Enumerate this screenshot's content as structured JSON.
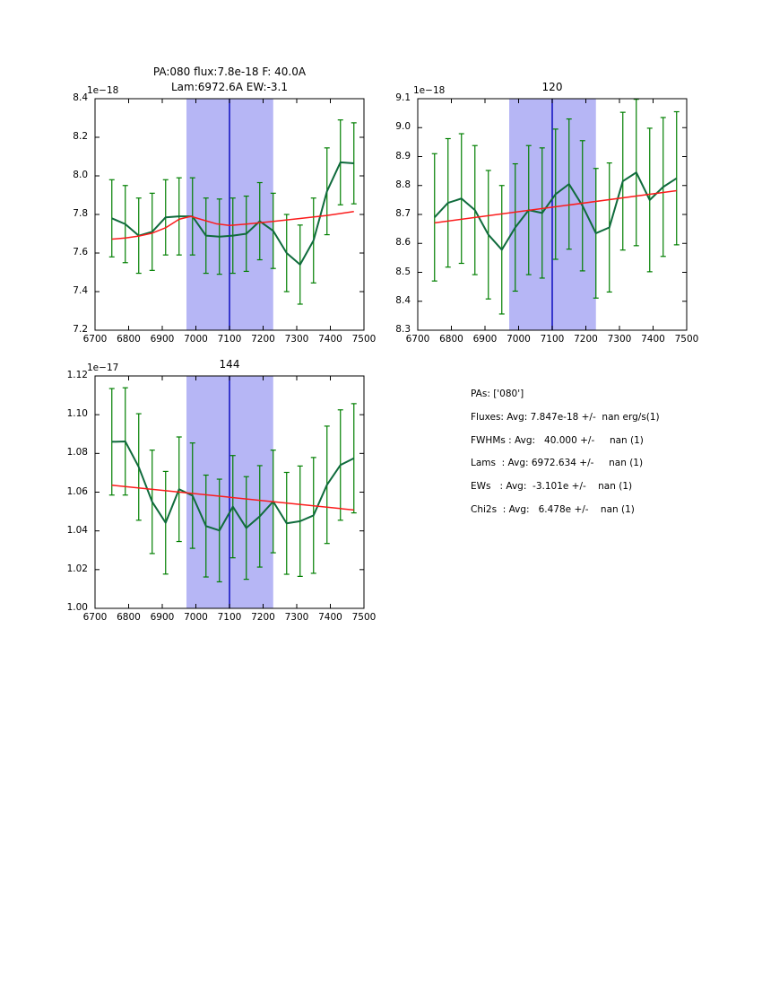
{
  "figure": {
    "background": "#ffffff"
  },
  "palette": {
    "band": "#b6b6f5",
    "vline": "#0d0dc0",
    "error_bar": "#007f00",
    "data_line": "#0f6b3c",
    "fit_line": "#fb1b1b",
    "frame": "#000000"
  },
  "chart_data": [
    {
      "type": "line",
      "title": "PA:080 flux:7.8e-18 F: 40.0A  Lam:6972.6A EW:-3.1",
      "title_lines": [
        "PA:080 flux:7.8e-18 F: 40.0A",
        "Lam:6972.6A EW:-3.1"
      ],
      "offset_label": "1e−18",
      "xlabel": "",
      "ylabel": "",
      "xlim": [
        6700,
        7500
      ],
      "ylim": [
        7.2,
        8.4
      ],
      "xticks": [
        6700,
        6800,
        6900,
        7000,
        7100,
        7200,
        7300,
        7400,
        7500
      ],
      "xtick_labels": [
        "6700",
        "6800",
        "6900",
        "7000",
        "7100",
        "7200",
        "7300",
        "7400",
        "7500"
      ],
      "yticks": [
        7.2,
        7.4,
        7.6,
        7.8,
        8.0,
        8.2,
        8.4
      ],
      "ytick_labels": [
        "7.2",
        "7.4",
        "7.6",
        "7.8",
        "8.0",
        "8.2",
        "8.4"
      ],
      "band": {
        "x0": 6972,
        "x1": 7230
      },
      "vline_x": 7100,
      "x": [
        6750,
        6790,
        6830,
        6870,
        6910,
        6950,
        6990,
        7030,
        7070,
        7110,
        7150,
        7190,
        7230,
        7270,
        7310,
        7350,
        7390,
        7430,
        7470
      ],
      "y": [
        7.78,
        7.75,
        7.69,
        7.71,
        7.785,
        7.79,
        7.79,
        7.69,
        7.685,
        7.69,
        7.7,
        7.765,
        7.715,
        7.6,
        7.54,
        7.665,
        7.92,
        8.07,
        8.065
      ],
      "yerr": [
        0.2,
        0.2,
        0.195,
        0.2,
        0.195,
        0.2,
        0.2,
        0.195,
        0.195,
        0.195,
        0.195,
        0.2,
        0.195,
        0.2,
        0.205,
        0.22,
        0.225,
        0.22,
        0.21
      ],
      "fit_line": [
        [
          6750,
          7.672
        ],
        [
          6790,
          7.678
        ],
        [
          6830,
          7.688
        ],
        [
          6870,
          7.703
        ],
        [
          6910,
          7.731
        ],
        [
          6950,
          7.775
        ],
        [
          6985,
          7.79
        ],
        [
          7020,
          7.772
        ],
        [
          7060,
          7.752
        ],
        [
          7100,
          7.743
        ],
        [
          7150,
          7.75
        ],
        [
          7230,
          7.764
        ],
        [
          7310,
          7.779
        ],
        [
          7390,
          7.795
        ],
        [
          7470,
          7.815
        ]
      ]
    },
    {
      "type": "line",
      "title": "120",
      "offset_label": "1e−18",
      "xlabel": "",
      "ylabel": "",
      "xlim": [
        6700,
        7500
      ],
      "ylim": [
        8.3,
        9.1
      ],
      "xticks": [
        6700,
        6800,
        6900,
        7000,
        7100,
        7200,
        7300,
        7400,
        7500
      ],
      "xtick_labels": [
        "6700",
        "6800",
        "6900",
        "7000",
        "7100",
        "7200",
        "7300",
        "7400",
        "7500"
      ],
      "yticks": [
        8.3,
        8.4,
        8.5,
        8.6,
        8.7,
        8.8,
        8.9,
        9.0,
        9.1
      ],
      "ytick_labels": [
        "8.3",
        "8.4",
        "8.5",
        "8.6",
        "8.7",
        "8.8",
        "8.9",
        "9.0",
        "9.1"
      ],
      "band": {
        "x0": 6972,
        "x1": 7230
      },
      "vline_x": 7100,
      "x": [
        6750,
        6790,
        6830,
        6870,
        6910,
        6950,
        6990,
        7030,
        7070,
        7110,
        7150,
        7190,
        7230,
        7270,
        7310,
        7350,
        7390,
        7430,
        7470
      ],
      "y": [
        8.69,
        8.74,
        8.755,
        8.715,
        8.63,
        8.578,
        8.655,
        8.715,
        8.705,
        8.77,
        8.805,
        8.73,
        8.635,
        8.655,
        8.815,
        8.845,
        8.75,
        8.795,
        8.825
      ],
      "yerr": [
        0.22,
        0.222,
        0.224,
        0.223,
        0.222,
        0.222,
        0.22,
        0.223,
        0.225,
        0.225,
        0.225,
        0.225,
        0.224,
        0.223,
        0.238,
        0.253,
        0.248,
        0.24,
        0.23
      ],
      "fit_line": [
        [
          6750,
          8.671
        ],
        [
          7470,
          8.782
        ]
      ]
    },
    {
      "type": "line",
      "title": "144",
      "offset_label": "1e−17",
      "xlabel": "",
      "ylabel": "",
      "xlim": [
        6700,
        7500
      ],
      "ylim": [
        1.0,
        1.12
      ],
      "xticks": [
        6700,
        6800,
        6900,
        7000,
        7100,
        7200,
        7300,
        7400,
        7500
      ],
      "xtick_labels": [
        "6700",
        "6800",
        "6900",
        "7000",
        "7100",
        "7200",
        "7300",
        "7400",
        "7500"
      ],
      "yticks": [
        1.0,
        1.02,
        1.04,
        1.06,
        1.08,
        1.1,
        1.12
      ],
      "ytick_labels": [
        "1.00",
        "1.02",
        "1.04",
        "1.06",
        "1.08",
        "1.10",
        "1.12"
      ],
      "band": {
        "x0": 6972,
        "x1": 7230
      },
      "vline_x": 7100,
      "x": [
        6750,
        6790,
        6830,
        6870,
        6910,
        6950,
        6990,
        7030,
        7070,
        7110,
        7150,
        7190,
        7230,
        7270,
        7310,
        7350,
        7390,
        7430,
        7470
      ],
      "y": [
        1.086,
        1.0862,
        1.073,
        1.055,
        1.0442,
        1.0615,
        1.0582,
        1.0425,
        1.0402,
        1.0525,
        1.0415,
        1.0475,
        1.0552,
        1.0439,
        1.045,
        1.048,
        1.0638,
        1.074,
        1.0775
      ],
      "yerr": [
        0.0275,
        0.0277,
        0.0275,
        0.0267,
        0.0265,
        0.027,
        0.0272,
        0.0263,
        0.0265,
        0.0264,
        0.0265,
        0.0262,
        0.0265,
        0.0263,
        0.0285,
        0.0299,
        0.0303,
        0.0285,
        0.0282
      ],
      "fit_line": [
        [
          6750,
          1.0636
        ],
        [
          7470,
          1.0508
        ]
      ]
    }
  ],
  "stats": {
    "lines": [
      "PAs: ['080']",
      "Fluxes: Avg: 7.847e-18 +/-  nan erg/s(1)",
      "FWHMs : Avg:   40.000 +/-     nan (1)",
      "Lams  : Avg: 6972.634 +/-     nan (1)",
      "EWs   : Avg:  -3.101e +/-    nan (1)",
      "Chi2s  : Avg:   6.478e +/-    nan (1)"
    ]
  }
}
